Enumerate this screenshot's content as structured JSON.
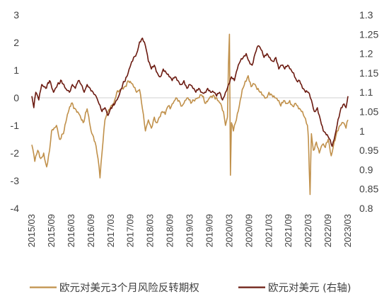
{
  "chart_data": {
    "type": "line",
    "title": "",
    "xlabel": "",
    "ylabel": "",
    "y_left": {
      "ticks": [
        3,
        2,
        1,
        0,
        -1,
        -2,
        -3,
        -4
      ],
      "labels": [
        "3",
        "2",
        "1",
        "0",
        "-1",
        "-2",
        "-3",
        "-4"
      ],
      "range": [
        -4,
        3
      ]
    },
    "y_right": {
      "ticks": [
        1.3,
        1.25,
        1.2,
        1.15,
        1.1,
        1.05,
        1,
        0.95,
        0.9,
        0.85,
        0.8
      ],
      "labels": [
        "1.3",
        "1.25",
        "1.2",
        "1.15",
        "1.1",
        "1.05",
        "1",
        "0.95",
        "0.9",
        "0.85",
        "0.8"
      ],
      "range": [
        0.8,
        1.3
      ]
    },
    "x_labels": [
      "2015/03",
      "2015/09",
      "2016/03",
      "2016/09",
      "2017/03",
      "2017/09",
      "2018/03",
      "2018/09",
      "2019/03",
      "2019/09",
      "2020/03",
      "2020/09",
      "2021/03",
      "2021/09",
      "2022/03",
      "2022/09",
      "2023/03"
    ],
    "grid": false,
    "legend_position": "bottom",
    "series": [
      {
        "name": "欧元对美元3个月风险反转期权",
        "axis": "left",
        "color": "#C0904A",
        "x": [
          0,
          0.15,
          0.3,
          0.45,
          0.6,
          0.75,
          0.9,
          1.0,
          1.25,
          1.4,
          1.6,
          1.8,
          2.0,
          2.2,
          2.4,
          2.6,
          2.8,
          3.0,
          3.2,
          3.35,
          3.45,
          3.55,
          3.7,
          3.85,
          4.0,
          4.15,
          4.3,
          4.5,
          4.7,
          4.9,
          5.1,
          5.3,
          5.45,
          5.6,
          5.75,
          5.9,
          6.05,
          6.2,
          6.3,
          6.45,
          6.6,
          6.75,
          6.9,
          7.0,
          7.15,
          7.3,
          7.45,
          7.6,
          7.75,
          7.9,
          8.05,
          8.2,
          8.4,
          8.6,
          8.8,
          9.0,
          9.2,
          9.4,
          9.55,
          9.7,
          9.8,
          9.9,
          9.95,
          10.0,
          10.05,
          10.1,
          10.2,
          10.35,
          10.5,
          10.65,
          10.8,
          10.95,
          11.1,
          11.25,
          11.4,
          11.55,
          11.7,
          11.85,
          12.0,
          12.15,
          12.3,
          12.45,
          12.6,
          12.75,
          12.9,
          13.05,
          13.2,
          13.35,
          13.5,
          13.65,
          13.8,
          13.95,
          14.0,
          14.08,
          14.15,
          14.25,
          14.4,
          14.55,
          14.7,
          14.85,
          15.0,
          15.15,
          15.3,
          15.45,
          15.6,
          15.75,
          15.9,
          16.0
        ],
        "values": [
          -1.7,
          -2.3,
          -1.9,
          -2.2,
          -2.0,
          -2.5,
          -1.9,
          -1.2,
          -1.0,
          -1.5,
          -1.3,
          -0.6,
          -0.2,
          -0.4,
          -0.6,
          -0.9,
          -0.4,
          -1.2,
          -1.6,
          -2.2,
          -2.9,
          -2.0,
          -0.8,
          -0.5,
          -0.3,
          -0.2,
          0.2,
          0.3,
          0.4,
          0.6,
          0.5,
          0.2,
          0.3,
          -0.4,
          -1.2,
          -0.8,
          -1.1,
          -0.7,
          -0.9,
          -0.7,
          -0.5,
          -0.6,
          -0.3,
          -0.4,
          -0.2,
          0.0,
          -0.1,
          -0.3,
          -0.1,
          0.0,
          -0.2,
          -0.1,
          0.0,
          0.1,
          -0.2,
          0.0,
          0.1,
          -0.1,
          -0.2,
          -0.5,
          -1.0,
          -0.7,
          1.2,
          2.3,
          -2.8,
          -0.9,
          -1.2,
          -0.8,
          -0.3,
          0.3,
          0.6,
          0.8,
          0.4,
          0.5,
          0.3,
          0.2,
          0.1,
          0.0,
          0.2,
          0.1,
          0.0,
          -0.1,
          -0.3,
          -0.1,
          -0.2,
          -0.1,
          -0.3,
          -0.2,
          -0.4,
          -0.5,
          -0.7,
          -1.0,
          -1.5,
          -3.5,
          -1.3,
          -1.9,
          -1.6,
          -2.0,
          -1.7,
          -1.8,
          -1.5,
          -2.1,
          -1.6,
          -1.2,
          -1.0,
          -0.9,
          -1.1,
          -0.8
        ]
      },
      {
        "name": "欧元对美元 (右轴)",
        "axis": "right",
        "color": "#6B1A10",
        "x": [
          0,
          0.1,
          0.2,
          0.35,
          0.5,
          0.7,
          0.9,
          1.1,
          1.3,
          1.5,
          1.7,
          1.9,
          2.05,
          2.2,
          2.35,
          2.5,
          2.65,
          2.8,
          2.95,
          3.1,
          3.25,
          3.4,
          3.55,
          3.7,
          3.85,
          4.0,
          4.2,
          4.4,
          4.6,
          4.8,
          5.0,
          5.15,
          5.3,
          5.45,
          5.6,
          5.75,
          5.9,
          6.05,
          6.2,
          6.35,
          6.5,
          6.65,
          6.8,
          6.95,
          7.1,
          7.25,
          7.4,
          7.55,
          7.7,
          7.85,
          8.0,
          8.15,
          8.3,
          8.45,
          8.6,
          8.75,
          8.9,
          9.05,
          9.2,
          9.35,
          9.5,
          9.65,
          9.8,
          9.95,
          10.1,
          10.25,
          10.4,
          10.55,
          10.7,
          10.85,
          11.0,
          11.15,
          11.3,
          11.45,
          11.6,
          11.75,
          11.9,
          12.05,
          12.2,
          12.35,
          12.5,
          12.65,
          12.8,
          12.95,
          13.1,
          13.25,
          13.4,
          13.55,
          13.7,
          13.85,
          14.0,
          14.15,
          14.3,
          14.45,
          14.6,
          14.75,
          14.9,
          15.05,
          15.2,
          15.35,
          15.5,
          15.65,
          15.8,
          15.9,
          16.0
        ],
        "values": [
          1.09,
          1.06,
          1.1,
          1.08,
          1.12,
          1.11,
          1.13,
          1.1,
          1.12,
          1.13,
          1.11,
          1.1,
          1.12,
          1.11,
          1.13,
          1.12,
          1.1,
          1.12,
          1.11,
          1.1,
          1.09,
          1.07,
          1.05,
          1.06,
          1.04,
          1.06,
          1.07,
          1.09,
          1.12,
          1.14,
          1.17,
          1.19,
          1.2,
          1.23,
          1.24,
          1.22,
          1.18,
          1.16,
          1.17,
          1.15,
          1.14,
          1.16,
          1.15,
          1.14,
          1.13,
          1.14,
          1.13,
          1.12,
          1.13,
          1.11,
          1.12,
          1.11,
          1.1,
          1.11,
          1.1,
          1.1,
          1.11,
          1.1,
          1.1,
          1.09,
          1.1,
          1.08,
          1.1,
          1.12,
          1.14,
          1.13,
          1.16,
          1.18,
          1.19,
          1.2,
          1.18,
          1.17,
          1.2,
          1.22,
          1.21,
          1.19,
          1.2,
          1.19,
          1.18,
          1.19,
          1.16,
          1.17,
          1.16,
          1.17,
          1.16,
          1.15,
          1.13,
          1.13,
          1.11,
          1.1,
          1.1,
          1.08,
          1.05,
          1.06,
          1.03,
          1.0,
          0.99,
          0.98,
          0.96,
          0.99,
          1.03,
          1.06,
          1.07,
          1.06,
          1.09
        ]
      }
    ]
  },
  "legend": {
    "items": [
      {
        "label": "欧元对美元3个月风险反转期权",
        "color": "#C0904A"
      },
      {
        "label": "欧元对美元 (右轴)",
        "color": "#6B1A10"
      }
    ]
  }
}
